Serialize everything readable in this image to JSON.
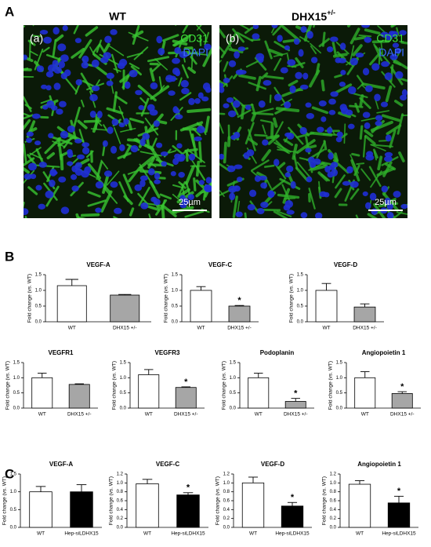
{
  "figure_labels": [
    "A",
    "B",
    "C"
  ],
  "images": [
    {
      "title": "WT",
      "tag": "(a)",
      "stains": [
        "CD31",
        "DAPI"
      ],
      "scale_bar": "25µm"
    },
    {
      "title": "DHX15",
      "title_sup": "+/-",
      "tag": "(b)",
      "stains": [
        "CD31",
        "DAPI"
      ],
      "scale_bar": "25µm"
    }
  ],
  "chart_data": [
    {
      "type": "bar",
      "title": "VEGF-A",
      "y_label": "Fold change (vs. WT)",
      "categories": [
        "WT",
        "DHX15 +/-"
      ],
      "values": [
        1.15,
        0.85
      ],
      "errors": [
        0.2,
        0.02
      ],
      "colors": [
        "#ffffff",
        "#a6a6a6"
      ],
      "annotations": [
        null,
        null
      ],
      "ylim": [
        0,
        1.5
      ],
      "yticks": [
        {
          "value": 0,
          "label": "0.0"
        },
        0.5,
        {
          "value": 1,
          "label": "1.0"
        },
        1.5
      ]
    },
    {
      "type": "bar",
      "title": "VEGF-C",
      "y_label": "Fold change (vs. WT)",
      "categories": [
        "WT",
        "DHX15 +/-"
      ],
      "values": [
        1.0,
        0.5
      ],
      "errors": [
        0.12,
        0.02
      ],
      "colors": [
        "#ffffff",
        "#a6a6a6"
      ],
      "annotations": [
        null,
        "*"
      ],
      "ylim": [
        0,
        1.5
      ],
      "yticks": [
        {
          "value": 0,
          "label": "0.0"
        },
        0.5,
        {
          "value": 1,
          "label": "1.0"
        },
        1.5
      ]
    },
    {
      "type": "bar",
      "title": "VEGF-D",
      "y_label": "Fold change (vs. WT)",
      "categories": [
        "WT",
        "DHX15 +/-"
      ],
      "values": [
        1.0,
        0.47
      ],
      "errors": [
        0.22,
        0.1
      ],
      "colors": [
        "#ffffff",
        "#a6a6a6"
      ],
      "annotations": [
        null,
        null
      ],
      "ylim": [
        0,
        1.5
      ],
      "yticks": [
        {
          "value": 0,
          "label": "0.0"
        },
        0.5,
        {
          "value": 1,
          "label": "1.0"
        },
        1.5
      ]
    },
    {
      "type": "bar",
      "title": "VEGFR1",
      "y_label": "Fold change (vs. WT)",
      "categories": [
        "WT",
        "DHX15 +/-"
      ],
      "values": [
        1.0,
        0.78
      ],
      "errors": [
        0.15,
        0.02
      ],
      "colors": [
        "#ffffff",
        "#a6a6a6"
      ],
      "annotations": [
        null,
        null
      ],
      "ylim": [
        0,
        1.5
      ],
      "yticks": [
        {
          "value": 0,
          "label": "0.0"
        },
        0.5,
        {
          "value": 1,
          "label": "1.0"
        },
        1.5
      ]
    },
    {
      "type": "bar",
      "title": "VEGFR3",
      "y_label": "Fold change (vs. WT)",
      "categories": [
        "WT",
        "DHX15 +/-"
      ],
      "values": [
        1.1,
        0.68
      ],
      "errors": [
        0.17,
        0.02
      ],
      "colors": [
        "#ffffff",
        "#a6a6a6"
      ],
      "annotations": [
        null,
        "*"
      ],
      "ylim": [
        0,
        1.5
      ],
      "yticks": [
        {
          "value": 0,
          "label": "0.0"
        },
        0.5,
        {
          "value": 1,
          "label": "1.0"
        },
        1.5
      ]
    },
    {
      "type": "bar",
      "title": "Podoplanin",
      "y_label": "Fold change (vs. WT)",
      "categories": [
        "WT",
        "DHX15 +/-"
      ],
      "values": [
        1.0,
        0.22
      ],
      "errors": [
        0.15,
        0.1
      ],
      "colors": [
        "#ffffff",
        "#a6a6a6"
      ],
      "annotations": [
        null,
        "*"
      ],
      "ylim": [
        0,
        1.5
      ],
      "yticks": [
        {
          "value": 0,
          "label": "0.0"
        },
        0.5,
        {
          "value": 1,
          "label": "1.0"
        },
        1.5
      ]
    },
    {
      "type": "bar",
      "title": "Angiopoietin 1",
      "y_label": "Fold change (vs. WT)",
      "categories": [
        "WT",
        "DHX15 +/-"
      ],
      "values": [
        1.0,
        0.48
      ],
      "errors": [
        0.2,
        0.06
      ],
      "colors": [
        "#ffffff",
        "#a6a6a6"
      ],
      "annotations": [
        null,
        "*"
      ],
      "ylim": [
        0,
        1.5
      ],
      "yticks": [
        {
          "value": 0,
          "label": "0.0"
        },
        0.5,
        {
          "value": 1,
          "label": "1.0"
        },
        1.5
      ]
    },
    {
      "type": "bar",
      "title": "VEGF-A",
      "y_label": "Fold change (vs. WT)",
      "categories": [
        "WT",
        "Hep-siLDHX15"
      ],
      "values": [
        1.0,
        1.0
      ],
      "errors": [
        0.15,
        0.2
      ],
      "colors": [
        "#ffffff",
        "#000000"
      ],
      "annotations": [
        null,
        null
      ],
      "ylim": [
        0,
        1.5
      ],
      "yticks": [
        {
          "value": 0,
          "label": "0.0"
        },
        0.5,
        {
          "value": 1,
          "label": "1.0"
        },
        1.5
      ]
    },
    {
      "type": "bar",
      "title": "VEGF-C",
      "y_label": "Fold change (vs. WT)",
      "categories": [
        "WT",
        "Hep-siLDHX15"
      ],
      "values": [
        0.98,
        0.73
      ],
      "errors": [
        0.1,
        0.05
      ],
      "colors": [
        "#ffffff",
        "#000000"
      ],
      "annotations": [
        null,
        "*"
      ],
      "ylim": [
        0,
        1.2
      ],
      "yticks": [
        {
          "value": 0,
          "label": "0.0"
        },
        0.2,
        0.4,
        0.6,
        0.8,
        {
          "value": 1,
          "label": "1.0"
        },
        1.2
      ]
    },
    {
      "type": "bar",
      "title": "VEGF-D",
      "y_label": "Fold change (vs. WT)",
      "categories": [
        "WT",
        "Hep-siLDHX15"
      ],
      "values": [
        1.0,
        0.48
      ],
      "errors": [
        0.13,
        0.08
      ],
      "colors": [
        "#ffffff",
        "#000000"
      ],
      "annotations": [
        null,
        "*"
      ],
      "ylim": [
        0,
        1.2
      ],
      "yticks": [
        {
          "value": 0,
          "label": "0.0"
        },
        0.2,
        0.4,
        0.6,
        0.8,
        {
          "value": 1,
          "label": "1.0"
        },
        1.2
      ]
    },
    {
      "type": "bar",
      "title": "Angiopoietin 1",
      "y_label": "Fold change (vs. WT)",
      "categories": [
        "WT",
        "Hep-siLDHX15"
      ],
      "values": [
        0.97,
        0.55
      ],
      "errors": [
        0.08,
        0.15
      ],
      "colors": [
        "#ffffff",
        "#000000"
      ],
      "annotations": [
        null,
        "*"
      ],
      "ylim": [
        0,
        1.2
      ],
      "yticks": [
        {
          "value": 0,
          "label": "0.0"
        },
        0.2,
        0.4,
        0.6,
        0.8,
        {
          "value": 1,
          "label": "1.0"
        },
        1.2
      ]
    }
  ]
}
